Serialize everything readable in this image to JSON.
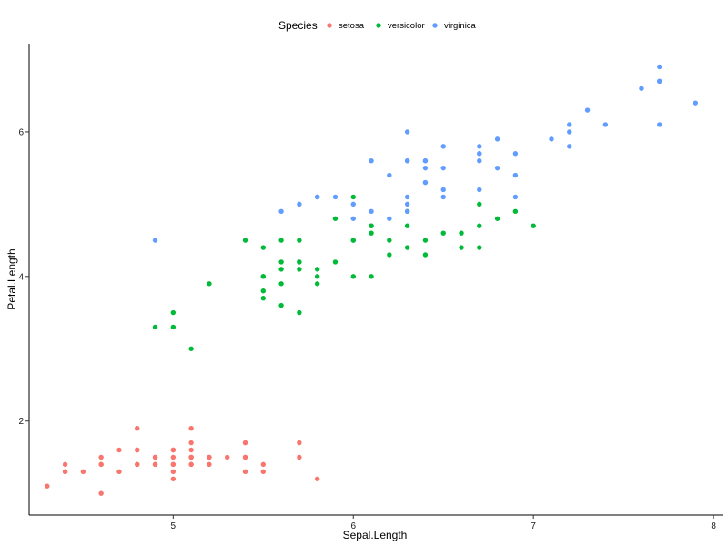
{
  "chart_data": {
    "type": "scatter",
    "xlabel": "Sepal.Length",
    "ylabel": "Petal.Length",
    "xlim": [
      4.2,
      8.05
    ],
    "ylim": [
      0.7,
      7.22
    ],
    "x_ticks": [
      5,
      6,
      7,
      8
    ],
    "y_ticks": [
      2,
      4,
      6
    ],
    "grid": false,
    "legend": {
      "title": "Species",
      "placement": "top"
    },
    "series": [
      {
        "name": "setosa",
        "color": "#F8766D",
        "points": [
          [
            5.1,
            1.4
          ],
          [
            4.9,
            1.4
          ],
          [
            4.7,
            1.3
          ],
          [
            4.6,
            1.5
          ],
          [
            5.0,
            1.4
          ],
          [
            5.4,
            1.7
          ],
          [
            4.6,
            1.4
          ],
          [
            5.0,
            1.5
          ],
          [
            4.4,
            1.4
          ],
          [
            4.9,
            1.5
          ],
          [
            5.4,
            1.5
          ],
          [
            4.8,
            1.6
          ],
          [
            4.8,
            1.4
          ],
          [
            4.3,
            1.1
          ],
          [
            5.8,
            1.2
          ],
          [
            5.7,
            1.5
          ],
          [
            5.4,
            1.3
          ],
          [
            5.1,
            1.4
          ],
          [
            5.7,
            1.7
          ],
          [
            5.1,
            1.5
          ],
          [
            5.4,
            1.7
          ],
          [
            5.1,
            1.5
          ],
          [
            4.6,
            1.0
          ],
          [
            5.1,
            1.7
          ],
          [
            4.8,
            1.9
          ],
          [
            5.0,
            1.6
          ],
          [
            5.0,
            1.6
          ],
          [
            5.2,
            1.5
          ],
          [
            5.2,
            1.4
          ],
          [
            4.7,
            1.6
          ],
          [
            4.8,
            1.6
          ],
          [
            5.4,
            1.5
          ],
          [
            5.2,
            1.5
          ],
          [
            5.5,
            1.4
          ],
          [
            4.9,
            1.5
          ],
          [
            5.0,
            1.2
          ],
          [
            5.5,
            1.3
          ],
          [
            4.9,
            1.4
          ],
          [
            4.4,
            1.3
          ],
          [
            5.1,
            1.5
          ],
          [
            5.0,
            1.3
          ],
          [
            4.5,
            1.3
          ],
          [
            4.4,
            1.3
          ],
          [
            5.0,
            1.6
          ],
          [
            5.1,
            1.9
          ],
          [
            4.8,
            1.4
          ],
          [
            5.1,
            1.6
          ],
          [
            4.6,
            1.4
          ],
          [
            5.3,
            1.5
          ],
          [
            5.0,
            1.4
          ]
        ]
      },
      {
        "name": "versicolor",
        "color": "#00BA38",
        "points": [
          [
            7.0,
            4.7
          ],
          [
            6.4,
            4.5
          ],
          [
            6.9,
            4.9
          ],
          [
            5.5,
            4.0
          ],
          [
            6.5,
            4.6
          ],
          [
            5.7,
            4.5
          ],
          [
            6.3,
            4.7
          ],
          [
            4.9,
            3.3
          ],
          [
            6.6,
            4.6
          ],
          [
            5.2,
            3.9
          ],
          [
            5.0,
            3.5
          ],
          [
            5.9,
            4.2
          ],
          [
            6.0,
            4.0
          ],
          [
            6.1,
            4.7
          ],
          [
            5.6,
            3.6
          ],
          [
            6.7,
            4.4
          ],
          [
            5.6,
            4.5
          ],
          [
            5.8,
            4.1
          ],
          [
            6.2,
            4.5
          ],
          [
            5.6,
            3.9
          ],
          [
            5.9,
            4.8
          ],
          [
            6.1,
            4.0
          ],
          [
            6.3,
            4.9
          ],
          [
            6.1,
            4.7
          ],
          [
            6.4,
            4.3
          ],
          [
            6.6,
            4.4
          ],
          [
            6.8,
            4.8
          ],
          [
            6.7,
            5.0
          ],
          [
            6.0,
            4.5
          ],
          [
            5.7,
            3.5
          ],
          [
            5.5,
            3.8
          ],
          [
            5.5,
            3.7
          ],
          [
            5.8,
            3.9
          ],
          [
            6.0,
            5.1
          ],
          [
            5.4,
            4.5
          ],
          [
            6.0,
            4.5
          ],
          [
            6.7,
            4.7
          ],
          [
            6.3,
            4.4
          ],
          [
            5.6,
            4.1
          ],
          [
            5.5,
            4.0
          ],
          [
            5.5,
            4.4
          ],
          [
            6.1,
            4.6
          ],
          [
            5.8,
            4.0
          ],
          [
            5.0,
            3.3
          ],
          [
            5.6,
            4.2
          ],
          [
            5.7,
            4.2
          ],
          [
            5.7,
            4.2
          ],
          [
            6.2,
            4.3
          ],
          [
            5.1,
            3.0
          ],
          [
            5.7,
            4.1
          ]
        ]
      },
      {
        "name": "virginica",
        "color": "#619CFF",
        "points": [
          [
            6.3,
            6.0
          ],
          [
            5.8,
            5.1
          ],
          [
            7.1,
            5.9
          ],
          [
            6.3,
            5.6
          ],
          [
            6.5,
            5.8
          ],
          [
            7.6,
            6.6
          ],
          [
            4.9,
            4.5
          ],
          [
            7.3,
            6.3
          ],
          [
            6.7,
            5.8
          ],
          [
            7.2,
            6.1
          ],
          [
            6.5,
            5.1
          ],
          [
            6.4,
            5.3
          ],
          [
            6.8,
            5.5
          ],
          [
            5.7,
            5.0
          ],
          [
            5.8,
            5.1
          ],
          [
            6.4,
            5.3
          ],
          [
            6.5,
            5.5
          ],
          [
            7.7,
            6.7
          ],
          [
            7.7,
            6.9
          ],
          [
            6.0,
            5.0
          ],
          [
            6.9,
            5.7
          ],
          [
            5.6,
            4.9
          ],
          [
            7.7,
            6.7
          ],
          [
            6.3,
            4.9
          ],
          [
            6.7,
            5.7
          ],
          [
            7.2,
            6.0
          ],
          [
            6.2,
            4.8
          ],
          [
            6.1,
            4.9
          ],
          [
            6.4,
            5.6
          ],
          [
            7.2,
            5.8
          ],
          [
            7.4,
            6.1
          ],
          [
            7.9,
            6.4
          ],
          [
            6.4,
            5.6
          ],
          [
            6.3,
            5.1
          ],
          [
            6.1,
            5.6
          ],
          [
            7.7,
            6.1
          ],
          [
            6.3,
            5.6
          ],
          [
            6.4,
            5.5
          ],
          [
            6.0,
            4.8
          ],
          [
            6.9,
            5.4
          ],
          [
            6.7,
            5.6
          ],
          [
            6.9,
            5.1
          ],
          [
            5.8,
            5.1
          ],
          [
            6.8,
            5.9
          ],
          [
            6.7,
            5.7
          ],
          [
            6.7,
            5.2
          ],
          [
            6.3,
            5.0
          ],
          [
            6.5,
            5.2
          ],
          [
            6.2,
            5.4
          ],
          [
            5.9,
            5.1
          ]
        ]
      }
    ]
  }
}
